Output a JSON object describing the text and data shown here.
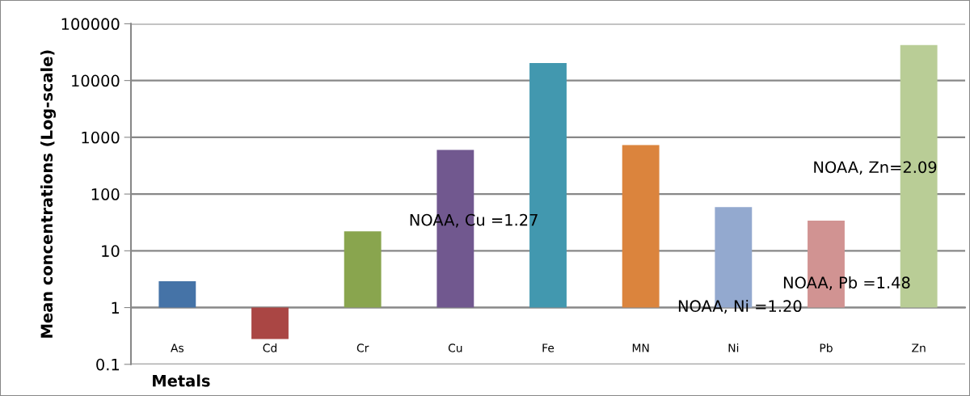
{
  "chart_data": {
    "type": "bar",
    "xlabel": "Metals",
    "ylabel": "Mean concentrations (Log-scale)",
    "categories": [
      "As",
      "Cd",
      "Cr",
      "Cu",
      "Fe",
      "MN",
      "Ni",
      "Pb",
      "Zn"
    ],
    "values": [
      1.9,
      -0.72,
      21,
      599,
      20399,
      729,
      58,
      33,
      42199
    ],
    "colors": [
      "#4573a7",
      "#aa4644",
      "#89a54e",
      "#71588f",
      "#4298af",
      "#db843d",
      "#93a9cf",
      "#d19392",
      "#b9cd96"
    ],
    "base": [
      1,
      1,
      1,
      1,
      1,
      1,
      1,
      1,
      1
    ],
    "log": "y",
    "ylim": [
      0.1,
      100000
    ],
    "yticks": [
      0.1,
      1,
      10,
      100,
      1000,
      10000,
      100000
    ],
    "grid": "y",
    "annotations": [
      "NOAA, Cu =1.27",
      "NOAA, Ni =1.20",
      "NOAA, Pb =1.48",
      "NOAA, Zn=2.09"
    ]
  }
}
